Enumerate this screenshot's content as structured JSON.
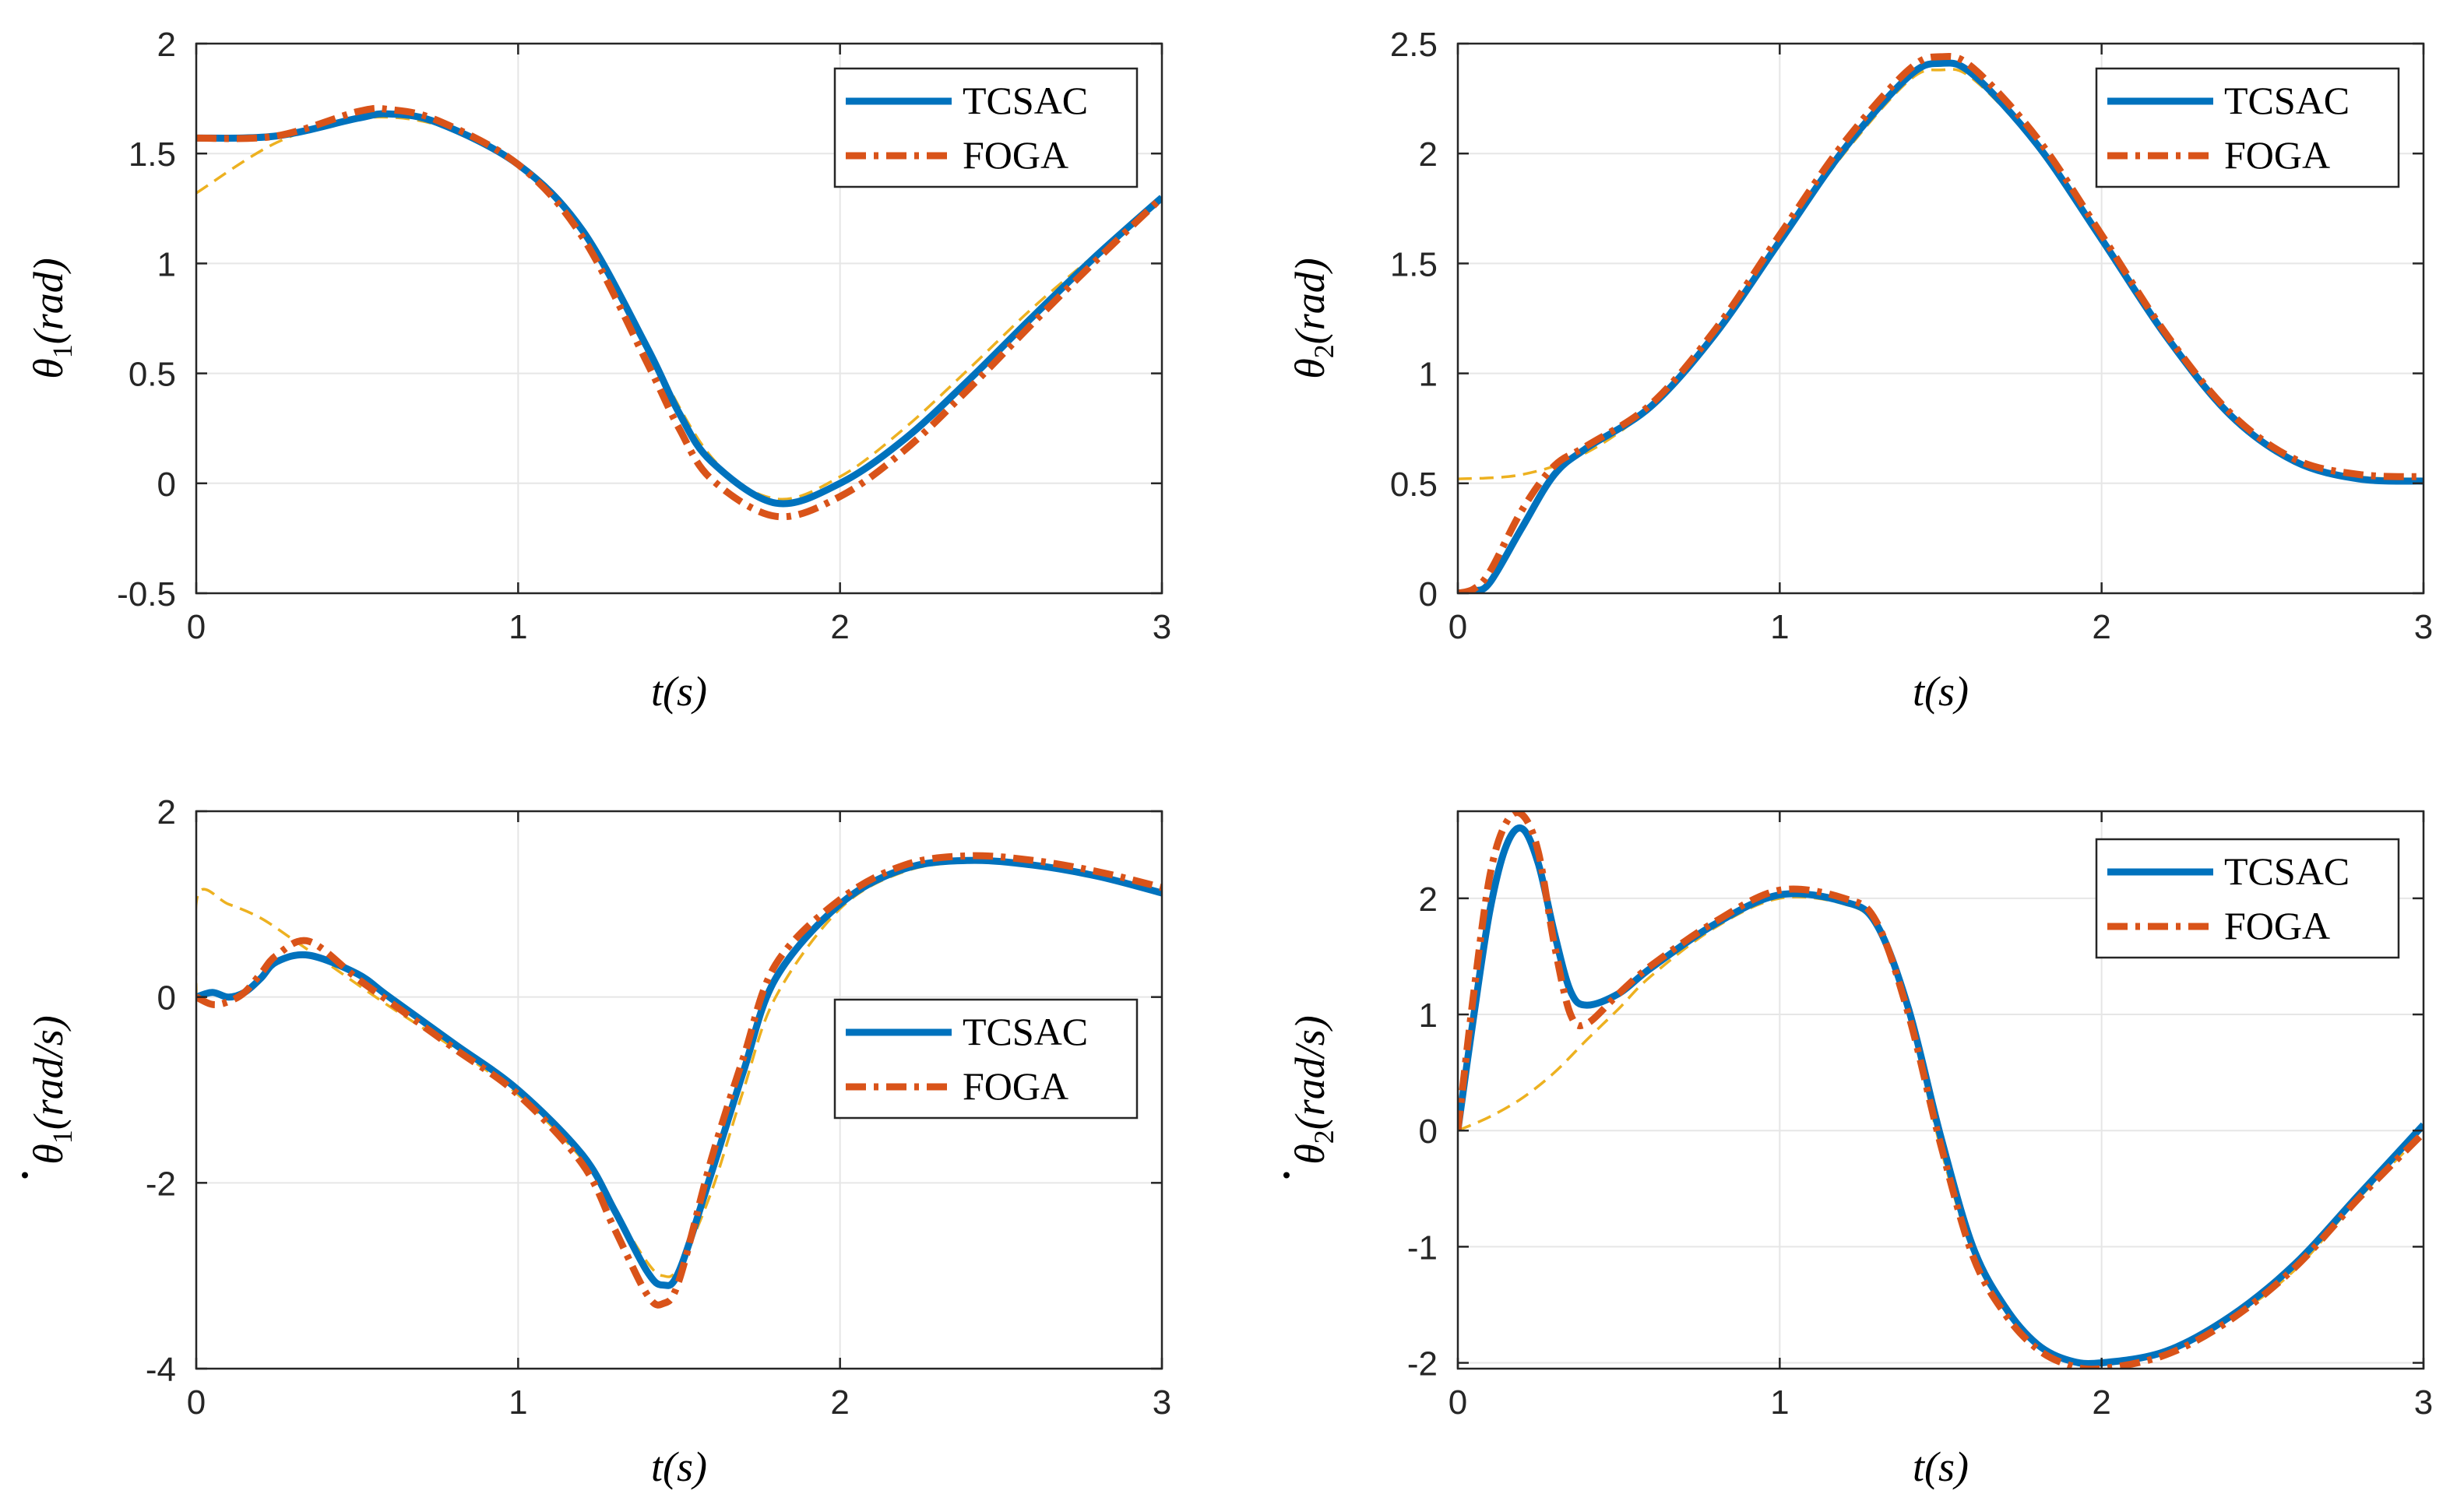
{
  "colors": {
    "tcsac": "#0072BD",
    "foga": "#D95319",
    "reference": "#EDB120",
    "grid": "#e6e6e6",
    "axis": "#262626"
  },
  "chart_data": [
    {
      "id": "theta1",
      "type": "line",
      "xlabel": "t(s)",
      "ylabel": {
        "symbol": "θ",
        "subscript": "1",
        "unit": "(rad)",
        "dot": false
      },
      "xlim": [
        0,
        3
      ],
      "ylim": [
        -0.5,
        2
      ],
      "xticks": [
        0,
        1,
        2,
        3
      ],
      "yticks": [
        -0.5,
        0,
        0.5,
        1,
        1.5,
        2
      ],
      "xtick_labels": [
        "0",
        "1",
        "2",
        "3"
      ],
      "ytick_labels": [
        "-0.5",
        "0",
        "0.5",
        "1",
        "1.5",
        "2"
      ],
      "grid": true,
      "legend": {
        "position": "top-right",
        "entries": [
          "TCSAC",
          "FOGA"
        ]
      },
      "series": [
        {
          "name": "reference",
          "style": "dashed-thin",
          "x": [
            0,
            0.25,
            0.5,
            0.75,
            1.0,
            1.2,
            1.4,
            1.6,
            1.8,
            2.0,
            2.2,
            2.4,
            2.6,
            2.8,
            3.0
          ],
          "y": [
            1.32,
            1.55,
            1.66,
            1.63,
            1.45,
            1.15,
            0.62,
            0.12,
            -0.07,
            0.03,
            0.25,
            0.52,
            0.8,
            1.05,
            1.3
          ]
        },
        {
          "name": "TCSAC",
          "style": "solid",
          "x": [
            0,
            0.25,
            0.5,
            0.6,
            0.75,
            1.0,
            1.2,
            1.4,
            1.5,
            1.6,
            1.8,
            2.0,
            2.2,
            2.4,
            2.6,
            2.8,
            3.0
          ],
          "y": [
            1.57,
            1.58,
            1.66,
            1.68,
            1.64,
            1.45,
            1.15,
            0.62,
            0.32,
            0.1,
            -0.09,
            0.0,
            0.2,
            0.47,
            0.76,
            1.04,
            1.3
          ]
        },
        {
          "name": "FOGA",
          "style": "dashdot",
          "x": [
            0,
            0.25,
            0.5,
            0.6,
            0.75,
            1.0,
            1.2,
            1.4,
            1.5,
            1.6,
            1.8,
            2.0,
            2.2,
            2.4,
            2.6,
            2.8,
            3.0
          ],
          "y": [
            1.57,
            1.58,
            1.69,
            1.7,
            1.65,
            1.45,
            1.12,
            0.55,
            0.25,
            0.02,
            -0.15,
            -0.06,
            0.15,
            0.43,
            0.73,
            1.02,
            1.3
          ]
        }
      ]
    },
    {
      "id": "theta2",
      "type": "line",
      "xlabel": "t(s)",
      "ylabel": {
        "symbol": "θ",
        "subscript": "2",
        "unit": "(rad)",
        "dot": false
      },
      "xlim": [
        0,
        3
      ],
      "ylim": [
        0,
        2.5
      ],
      "xticks": [
        0,
        1,
        2,
        3
      ],
      "yticks": [
        0,
        0.5,
        1,
        1.5,
        2,
        2.5
      ],
      "xtick_labels": [
        "0",
        "1",
        "2",
        "3"
      ],
      "ytick_labels": [
        "0",
        "0.5",
        "1",
        "1.5",
        "2",
        "2.5"
      ],
      "grid": true,
      "legend": {
        "position": "top-right",
        "entries": [
          "TCSAC",
          "FOGA"
        ]
      },
      "series": [
        {
          "name": "reference",
          "style": "dashed-thin",
          "x": [
            0,
            0.2,
            0.4,
            0.6,
            0.8,
            1.0,
            1.2,
            1.4,
            1.5,
            1.6,
            1.8,
            2.0,
            2.2,
            2.4,
            2.6,
            2.8,
            3.0
          ],
          "y": [
            0.52,
            0.54,
            0.64,
            0.85,
            1.18,
            1.6,
            2.0,
            2.33,
            2.38,
            2.34,
            2.03,
            1.6,
            1.16,
            0.81,
            0.6,
            0.53,
            0.52
          ]
        },
        {
          "name": "TCSAC",
          "style": "solid",
          "x": [
            0,
            0.05,
            0.1,
            0.2,
            0.3,
            0.4,
            0.6,
            0.8,
            1.0,
            1.2,
            1.4,
            1.5,
            1.6,
            1.8,
            2.0,
            2.2,
            2.4,
            2.6,
            2.8,
            3.0
          ],
          "y": [
            0.0,
            0.01,
            0.05,
            0.3,
            0.54,
            0.66,
            0.85,
            1.18,
            1.6,
            2.02,
            2.35,
            2.41,
            2.36,
            2.04,
            1.61,
            1.17,
            0.81,
            0.6,
            0.52,
            0.51
          ]
        },
        {
          "name": "FOGA",
          "style": "dashdot",
          "x": [
            0,
            0.05,
            0.1,
            0.2,
            0.3,
            0.4,
            0.6,
            0.8,
            1.0,
            1.2,
            1.4,
            1.5,
            1.6,
            1.8,
            2.0,
            2.2,
            2.4,
            2.6,
            2.8,
            3.0
          ],
          "y": [
            0.0,
            0.02,
            0.1,
            0.38,
            0.58,
            0.67,
            0.86,
            1.2,
            1.63,
            2.05,
            2.38,
            2.44,
            2.39,
            2.07,
            1.63,
            1.18,
            0.82,
            0.61,
            0.54,
            0.53
          ]
        }
      ]
    },
    {
      "id": "theta1dot",
      "type": "line",
      "xlabel": "t(s)",
      "ylabel": {
        "symbol": "θ",
        "subscript": "1",
        "unit": "(rad/s)",
        "dot": true
      },
      "xlim": [
        0,
        3
      ],
      "ylim": [
        -4,
        2
      ],
      "xticks": [
        0,
        1,
        2,
        3
      ],
      "yticks": [
        -4,
        -2,
        0,
        2
      ],
      "xtick_labels": [
        "0",
        "1",
        "2",
        "3"
      ],
      "ytick_labels": [
        "-4",
        "-2",
        "0",
        "2"
      ],
      "grid": true,
      "legend": {
        "position": "middle-right",
        "entries": [
          "TCSAC",
          "FOGA"
        ]
      },
      "series": [
        {
          "name": "reference",
          "style": "dashed-thin",
          "x": [
            0,
            0.005,
            0.1,
            0.2,
            0.3,
            0.4,
            0.6,
            0.8,
            1.0,
            1.2,
            1.3,
            1.4,
            1.45,
            1.5,
            1.6,
            1.7,
            1.8,
            2.0,
            2.2,
            2.4,
            2.6,
            2.8,
            3.0
          ],
          "y": [
            0.0,
            1.1,
            1.0,
            0.85,
            0.62,
            0.38,
            -0.1,
            -0.55,
            -1.05,
            -1.75,
            -2.3,
            -2.85,
            -3.0,
            -2.9,
            -2.1,
            -1.0,
            0.0,
            0.95,
            1.35,
            1.45,
            1.4,
            1.28,
            1.12
          ]
        },
        {
          "name": "TCSAC",
          "style": "solid",
          "x": [
            0,
            0.05,
            0.1,
            0.15,
            0.2,
            0.25,
            0.35,
            0.5,
            0.6,
            0.8,
            1.0,
            1.2,
            1.3,
            1.4,
            1.45,
            1.5,
            1.6,
            1.7,
            1.8,
            2.0,
            2.2,
            2.4,
            2.6,
            2.8,
            3.0
          ],
          "y": [
            0.0,
            0.05,
            0.0,
            0.05,
            0.2,
            0.38,
            0.45,
            0.25,
            0.0,
            -0.5,
            -1.0,
            -1.7,
            -2.3,
            -2.95,
            -3.1,
            -2.95,
            -1.9,
            -0.8,
            0.2,
            1.0,
            1.38,
            1.47,
            1.42,
            1.3,
            1.12
          ]
        },
        {
          "name": "FOGA",
          "style": "dashdot",
          "x": [
            0,
            0.05,
            0.1,
            0.15,
            0.2,
            0.25,
            0.35,
            0.5,
            0.6,
            0.8,
            1.0,
            1.2,
            1.3,
            1.4,
            1.45,
            1.5,
            1.6,
            1.7,
            1.8,
            2.0,
            2.2,
            2.4,
            2.6,
            2.8,
            3.0
          ],
          "y": [
            0.0,
            -0.08,
            -0.05,
            0.05,
            0.25,
            0.45,
            0.6,
            0.2,
            -0.05,
            -0.55,
            -1.05,
            -1.8,
            -2.5,
            -3.2,
            -3.3,
            -3.05,
            -1.75,
            -0.65,
            0.35,
            1.05,
            1.42,
            1.52,
            1.47,
            1.35,
            1.18
          ]
        }
      ]
    },
    {
      "id": "theta2dot",
      "type": "line",
      "xlabel": "t(s)",
      "ylabel": {
        "symbol": "θ",
        "subscript": "2",
        "unit": "(rad/s)",
        "dot": true
      },
      "xlim": [
        0,
        3
      ],
      "ylim": [
        -2.05,
        2.75
      ],
      "xticks": [
        0,
        1,
        2,
        3
      ],
      "yticks": [
        -2,
        -1,
        0,
        1,
        2
      ],
      "xtick_labels": [
        "0",
        "1",
        "2",
        "3"
      ],
      "ytick_labels": [
        "-2",
        "-1",
        "0",
        "1",
        "2"
      ],
      "grid": true,
      "legend": {
        "position": "top-right",
        "entries": [
          "TCSAC",
          "FOGA"
        ]
      },
      "series": [
        {
          "name": "reference",
          "style": "dashed-thin",
          "x": [
            0,
            0.1,
            0.2,
            0.3,
            0.4,
            0.5,
            0.6,
            0.8,
            1.0,
            1.2,
            1.3,
            1.4,
            1.5,
            1.6,
            1.7,
            1.8,
            1.9,
            2.0,
            2.2,
            2.4,
            2.6,
            2.8,
            3.0
          ],
          "y": [
            0.0,
            0.12,
            0.28,
            0.5,
            0.78,
            1.05,
            1.33,
            1.75,
            2.0,
            1.95,
            1.75,
            1.0,
            -0.15,
            -1.05,
            -1.55,
            -1.85,
            -1.98,
            -2.0,
            -1.9,
            -1.62,
            -1.2,
            -0.58,
            -0.02
          ]
        },
        {
          "name": "TCSAC",
          "style": "solid",
          "x": [
            0,
            0.05,
            0.1,
            0.15,
            0.2,
            0.25,
            0.3,
            0.35,
            0.4,
            0.5,
            0.6,
            0.8,
            1.0,
            1.2,
            1.3,
            1.4,
            1.5,
            1.6,
            1.7,
            1.8,
            1.9,
            2.0,
            2.2,
            2.4,
            2.6,
            2.8,
            3.0
          ],
          "y": [
            0.0,
            1.0,
            1.9,
            2.45,
            2.6,
            2.3,
            1.7,
            1.2,
            1.08,
            1.18,
            1.4,
            1.78,
            2.03,
            1.97,
            1.78,
            1.05,
            -0.05,
            -1.0,
            -1.52,
            -1.84,
            -1.98,
            -2.0,
            -1.9,
            -1.6,
            -1.15,
            -0.55,
            0.05
          ]
        },
        {
          "name": "FOGA",
          "style": "dashdot",
          "x": [
            0,
            0.05,
            0.1,
            0.15,
            0.2,
            0.25,
            0.3,
            0.35,
            0.4,
            0.5,
            0.6,
            0.8,
            1.0,
            1.2,
            1.3,
            1.4,
            1.5,
            1.6,
            1.7,
            1.8,
            1.9,
            2.0,
            2.2,
            2.4,
            2.6,
            2.8,
            3.0
          ],
          "y": [
            0.0,
            1.2,
            2.2,
            2.65,
            2.72,
            2.4,
            1.6,
            1.0,
            0.92,
            1.18,
            1.42,
            1.8,
            2.07,
            2.0,
            1.8,
            1.0,
            -0.12,
            -1.08,
            -1.58,
            -1.88,
            -2.02,
            -2.05,
            -1.93,
            -1.63,
            -1.18,
            -0.58,
            -0.02
          ]
        }
      ]
    }
  ]
}
